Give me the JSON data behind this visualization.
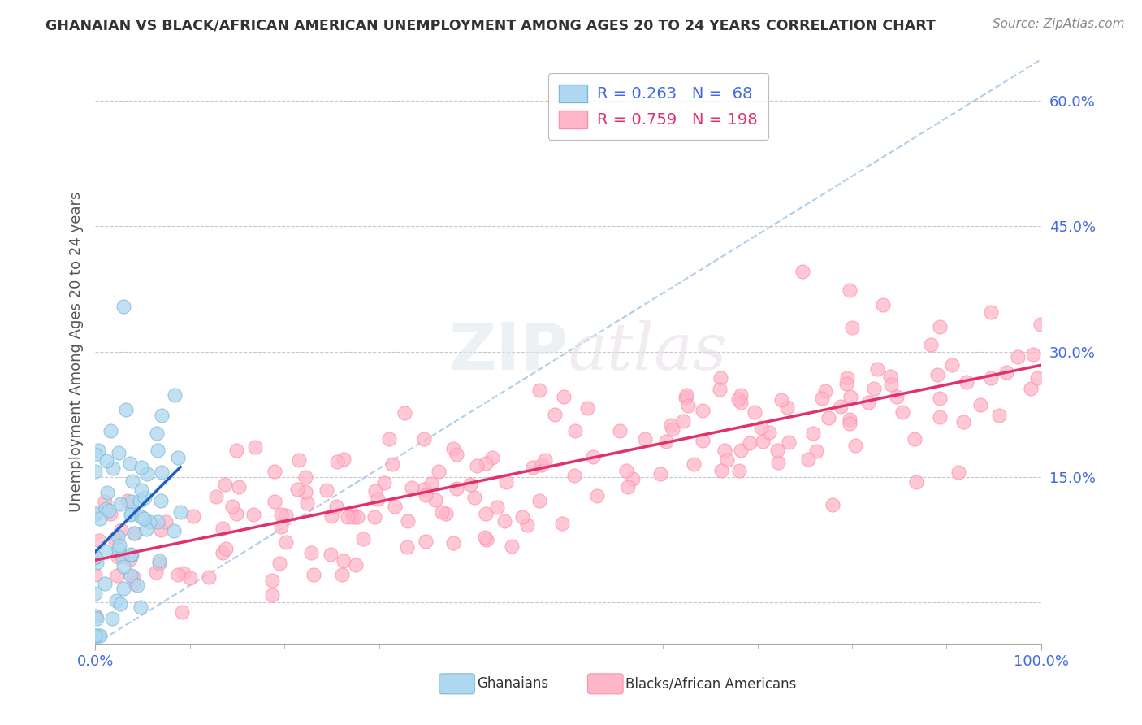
{
  "title": "GHANAIAN VS BLACK/AFRICAN AMERICAN UNEMPLOYMENT AMONG AGES 20 TO 24 YEARS CORRELATION CHART",
  "source": "Source: ZipAtlas.com",
  "ylabel": "Unemployment Among Ages 20 to 24 years",
  "xlabel": "",
  "xlim": [
    0.0,
    1.0
  ],
  "ylim": [
    -0.05,
    0.65
  ],
  "yticks": [
    0.0,
    0.15,
    0.3,
    0.45,
    0.6
  ],
  "ytick_labels": [
    "",
    "15.0%",
    "30.0%",
    "45.0%",
    "60.0%"
  ],
  "xtick_labels": [
    "0.0%",
    "100.0%"
  ],
  "ghanaian_color": "#ADD8F0",
  "ghanaian_edge": "#7EB8D4",
  "baa_color": "#FFB6C8",
  "baa_edge": "#FF8FAB",
  "trendline_ghanaian_color": "#2060C0",
  "trendline_baa_color": "#E03070",
  "trendline_diagonal_color": "#A8C8E8",
  "R_ghanaian": 0.263,
  "N_ghanaian": 68,
  "R_baa": 0.759,
  "N_baa": 198,
  "watermark_zip": "ZIP",
  "watermark_atlas": "atlas",
  "background_color": "#FFFFFF",
  "grid_color": "#C8C8C8",
  "title_color": "#333333",
  "axis_label_color": "#555555",
  "tick_label_color": "#4169E1",
  "right_tick_label_color": "#4169E1",
  "legend_text_color_1": "#4169E1",
  "legend_text_color_2": "#E03070"
}
